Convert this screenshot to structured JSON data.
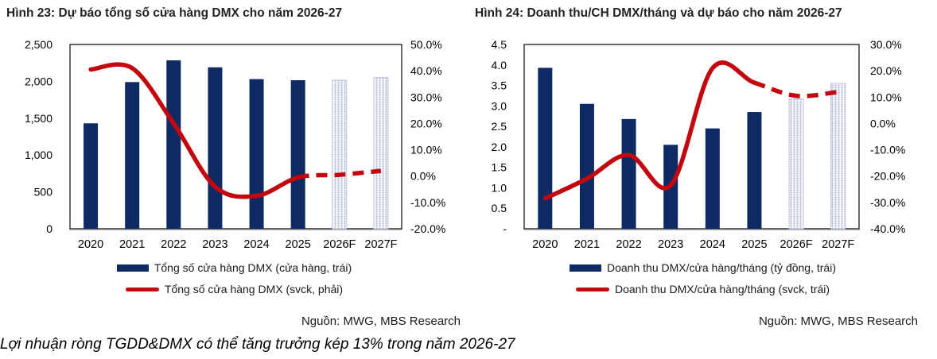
{
  "caption": "Lợi nhuận ròng TGDD&DMX có thể tăng trưởng kép 13% trong năm 2026-27",
  "colors": {
    "bar_navy": "#0e2a62",
    "line_red": "#c3070f",
    "forecast_dot": "#a9b2d2",
    "forecast_border": "#b7bfd9",
    "axis_text": "#000000",
    "plot_border": "#1a1a1a",
    "baseline_gray": "#c9c9c9"
  },
  "chart_data": [
    {
      "type": "bar",
      "title": "Hình 23: Dự báo tổng số cửa hàng DMX cho năm 2026-27",
      "source": "Nguồn: MWG, MBS Research",
      "categories": [
        "2020",
        "2021",
        "2022",
        "2023",
        "2024",
        "2025",
        "2026F",
        "2027F"
      ],
      "series": [
        {
          "name": "Tổng số cửa hàng DMX (cửa hàng, trái)",
          "type": "bar",
          "axis": "left",
          "values": [
            1430,
            1990,
            2285,
            2190,
            2030,
            2015,
            2015,
            2050
          ],
          "forecast_from": 6
        },
        {
          "name": "Tổng số cửa hàng DMX (svck, phải)",
          "type": "line",
          "axis": "right",
          "values": [
            40.5,
            41,
            20,
            -4,
            -7.5,
            -0.5,
            0.5,
            2
          ],
          "dashed_from": 5
        }
      ],
      "left_axis": {
        "min": 0,
        "max": 2500,
        "ticks": [
          "2,500",
          "2,000",
          "1,500",
          "1,000",
          "500",
          "0"
        ]
      },
      "right_axis": {
        "min": -20,
        "max": 50,
        "ticks": [
          "50.0%",
          "40.0%",
          "30.0%",
          "20.0%",
          "10.0%",
          "0.0%",
          "-10.0%",
          "-20.0%"
        ]
      },
      "grid": false,
      "legend_position": "bottom"
    },
    {
      "type": "bar",
      "title": "Hình 24: Doanh thu/CH DMX/tháng và dự báo cho năm 2026-27",
      "source": "Nguồn: MWG, MBS Research",
      "categories": [
        "2020",
        "2021",
        "2022",
        "2023",
        "2024",
        "2025",
        "2026F",
        "2027F"
      ],
      "series": [
        {
          "name": "Doanh thu DMX/cửa hàng/tháng (tỷ đồng, trái)",
          "type": "bar",
          "axis": "left",
          "values": [
            3.93,
            3.05,
            2.68,
            2.05,
            2.45,
            2.85,
            3.17,
            3.55
          ],
          "forecast_from": 6
        },
        {
          "name": "Doanh thu DMX/cửa hàng/tháng (svck, trái)",
          "type": "line",
          "axis": "right",
          "values": [
            -28.5,
            -21,
            -12,
            -23.5,
            21,
            15.5,
            10.5,
            12
          ],
          "dashed_from": 5
        }
      ],
      "left_axis": {
        "min": 0,
        "max": 4.5,
        "ticks": [
          "4.5",
          "4.0",
          "3.5",
          "3.0",
          "2.5",
          "2.0",
          "1.5",
          "1.0",
          "0.5",
          "-"
        ]
      },
      "right_axis": {
        "min": -40,
        "max": 30,
        "ticks": [
          "30.0%",
          "20.0%",
          "10.0%",
          "0.0%",
          "-10.0%",
          "-20.0%",
          "-30.0%",
          "-40.0%"
        ]
      },
      "grid": false,
      "legend_position": "bottom"
    }
  ]
}
